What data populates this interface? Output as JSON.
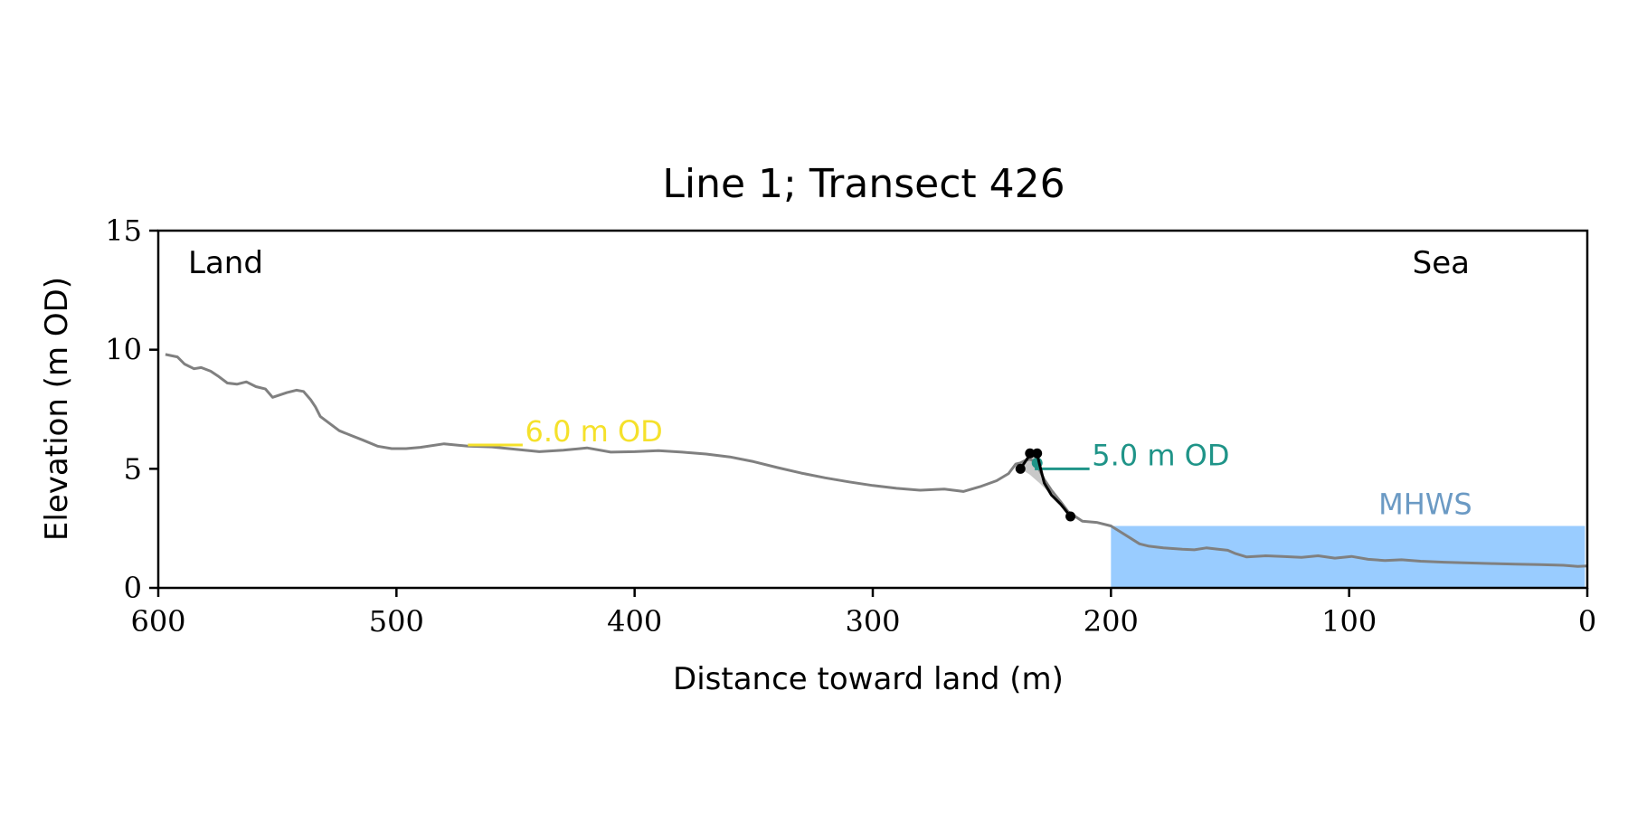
{
  "chart_data": {
    "type": "line",
    "title": "Line 1; Transect 426",
    "xlabel": "Distance toward land (m)",
    "ylabel": "Elevation (m OD)",
    "xlim": [
      600,
      0
    ],
    "ylim": [
      0,
      15
    ],
    "x_ticks": [
      600,
      500,
      400,
      300,
      200,
      100,
      0
    ],
    "y_ticks": [
      0,
      5,
      10,
      15
    ],
    "corner_labels": {
      "left": "Land",
      "right": "Sea"
    },
    "grid": false,
    "legend": "none",
    "colors": {
      "profile": "#808080",
      "cliff": "#000000",
      "cliff_fill": "#c8c8c8",
      "mhws": "#99ccff",
      "mhws_text": "#6b9ac4",
      "od6": "#f5e12b",
      "od5": "#1f9488"
    },
    "series": [
      {
        "x": [
          597,
          592,
          589,
          585,
          582,
          578,
          575,
          571,
          567,
          563,
          559,
          555,
          552,
          549,
          546,
          542,
          539,
          536,
          534,
          532,
          528,
          524,
          519,
          514,
          508,
          502,
          496,
          490,
          480,
          470,
          460,
          450,
          440,
          430,
          420,
          410,
          400,
          390,
          380,
          370,
          360,
          350,
          340,
          330,
          320,
          310,
          300,
          290,
          280,
          270,
          262,
          255,
          248,
          243,
          240,
          238,
          236,
          234,
          232,
          230,
          228,
          225,
          221,
          218,
          212,
          206,
          200,
          196,
          192,
          188,
          184,
          178,
          170,
          165,
          160,
          155,
          151,
          148,
          143,
          135,
          128,
          120,
          113,
          106,
          99,
          92,
          85,
          78,
          70,
          60,
          50,
          40,
          30,
          20,
          10,
          4,
          0
        ],
        "y": [
          9.8,
          9.7,
          9.4,
          9.2,
          9.25,
          9.1,
          8.9,
          8.6,
          8.55,
          8.65,
          8.45,
          8.35,
          8.0,
          8.1,
          8.2,
          8.3,
          8.25,
          7.9,
          7.6,
          7.2,
          6.9,
          6.6,
          6.4,
          6.2,
          5.95,
          5.85,
          5.85,
          5.9,
          6.05,
          5.95,
          5.92,
          5.82,
          5.72,
          5.78,
          5.88,
          5.7,
          5.72,
          5.76,
          5.7,
          5.62,
          5.5,
          5.3,
          5.05,
          4.82,
          4.62,
          4.45,
          4.3,
          4.18,
          4.1,
          4.15,
          4.05,
          4.25,
          4.5,
          4.8,
          5.2,
          5.25,
          5.35,
          5.4,
          5.3,
          4.95,
          4.55,
          4.1,
          3.6,
          3.2,
          2.8,
          2.75,
          2.6,
          2.35,
          2.1,
          1.85,
          1.75,
          1.68,
          1.62,
          1.6,
          1.68,
          1.62,
          1.58,
          1.45,
          1.3,
          1.35,
          1.32,
          1.28,
          1.35,
          1.25,
          1.32,
          1.2,
          1.15,
          1.18,
          1.12,
          1.08,
          1.05,
          1.02,
          1.0,
          0.98,
          0.95,
          0.9,
          0.92
        ]
      }
    ],
    "cliff_line": {
      "x": [
        238,
        235,
        233,
        231,
        230,
        228,
        225,
        221,
        217
      ],
      "y": [
        5.0,
        5.45,
        5.68,
        5.62,
        5.2,
        4.4,
        3.9,
        3.5,
        3.0
      ]
    },
    "cliff_markers": {
      "x": [
        238,
        234,
        231,
        217
      ],
      "y": [
        5.0,
        5.65,
        5.65,
        3.0
      ]
    },
    "cliff_fill": {
      "x": [
        238,
        235,
        233,
        231,
        230,
        228,
        225,
        221,
        217,
        221,
        225,
        230,
        234,
        238
      ],
      "y": [
        5.0,
        5.45,
        5.68,
        5.62,
        5.2,
        4.4,
        3.9,
        3.5,
        3.0,
        3.5,
        3.9,
        4.4,
        4.75,
        5.0
      ]
    },
    "mhws_band": {
      "x_from": 200,
      "x_to": 1,
      "level": 2.6,
      "label": "MHWS",
      "label_x": 68,
      "label_y": 3.1
    },
    "annotations": [
      {
        "text": "6.0 m OD",
        "line_x": [
          470,
          447
        ],
        "y": 6.0,
        "text_x": 446,
        "text_y": 6.0,
        "color_key": "od6"
      },
      {
        "text": "5.0 m OD",
        "line_x": [
          232,
          209
        ],
        "y": 5.0,
        "text_x": 208,
        "text_y": 5.0,
        "color_key": "od5"
      }
    ],
    "od5_marker": {
      "x": 231,
      "y": 5.25
    }
  }
}
